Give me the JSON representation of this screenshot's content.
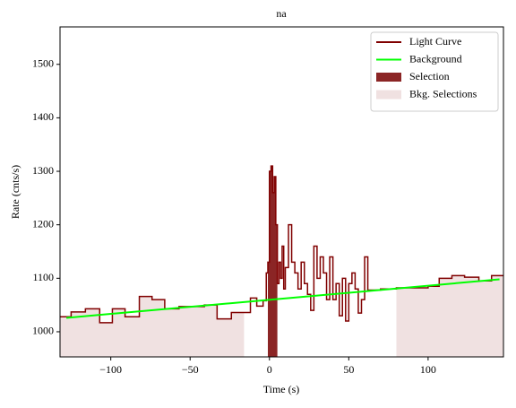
{
  "chart_data": {
    "type": "line",
    "title": "na",
    "x_label": "Time (s)",
    "y_label": "Rate (cnts/s)",
    "xlim": [
      -132,
      147.5
    ],
    "ylim": [
      953,
      1570
    ],
    "xticks": [
      {
        "value": -100,
        "label": "−100"
      },
      {
        "value": -50,
        "label": "−50"
      },
      0,
      50,
      100
    ],
    "yticks": [
      1000,
      1100,
      1200,
      1300,
      1400,
      1500
    ],
    "legend": "upper right",
    "series": [
      {
        "name": "Light Curve",
        "color": "#800000",
        "drawstyle": "steps-post",
        "x": [
          -132,
          -125,
          -116,
          -107,
          -99,
          -91,
          -82,
          -74,
          -66,
          -57,
          -49,
          -41,
          -33,
          -24,
          -16,
          -12,
          -8,
          -4,
          -2,
          -1,
          0,
          1,
          2,
          3,
          4,
          5,
          6,
          7,
          8,
          9,
          10,
          12,
          14,
          16,
          18,
          20,
          22,
          24,
          26,
          28,
          30,
          32,
          34,
          36,
          38,
          40,
          42,
          44,
          46,
          48,
          50,
          52,
          54,
          56,
          58,
          60,
          62,
          70,
          80,
          100,
          107,
          115,
          123,
          132,
          140,
          147.5
        ],
        "values": [
          1028,
          1037,
          1043,
          1017,
          1043,
          1028,
          1066,
          1060,
          1043,
          1047,
          1047,
          1050,
          1024,
          1036,
          1036,
          1063,
          1048,
          1058,
          1110,
          1130,
          1300,
          1310,
          1260,
          1290,
          1200,
          1090,
          1130,
          1100,
          1160,
          1080,
          1120,
          1200,
          1130,
          1110,
          1080,
          1130,
          1090,
          1070,
          1040,
          1160,
          1100,
          1140,
          1110,
          1060,
          1140,
          1060,
          1090,
          1030,
          1100,
          1020,
          1090,
          1110,
          1080,
          1035,
          1060,
          1140,
          1078,
          1080,
          1082,
          1085,
          1100,
          1105,
          1102,
          1095,
          1105,
          1105
        ]
      },
      {
        "name": "Background",
        "color": "#00ff00",
        "x": [
          -128,
          145
        ],
        "values": [
          1026,
          1098
        ]
      }
    ],
    "regions": [
      {
        "name": "Selection",
        "color": "#8b2525",
        "ranges": [
          [
            -1,
            5
          ]
        ]
      },
      {
        "name": "Bkg. Selections",
        "color": "#f0e1e1",
        "ranges": [
          [
            -132,
            -16
          ],
          [
            80,
            147.5
          ]
        ]
      }
    ]
  }
}
